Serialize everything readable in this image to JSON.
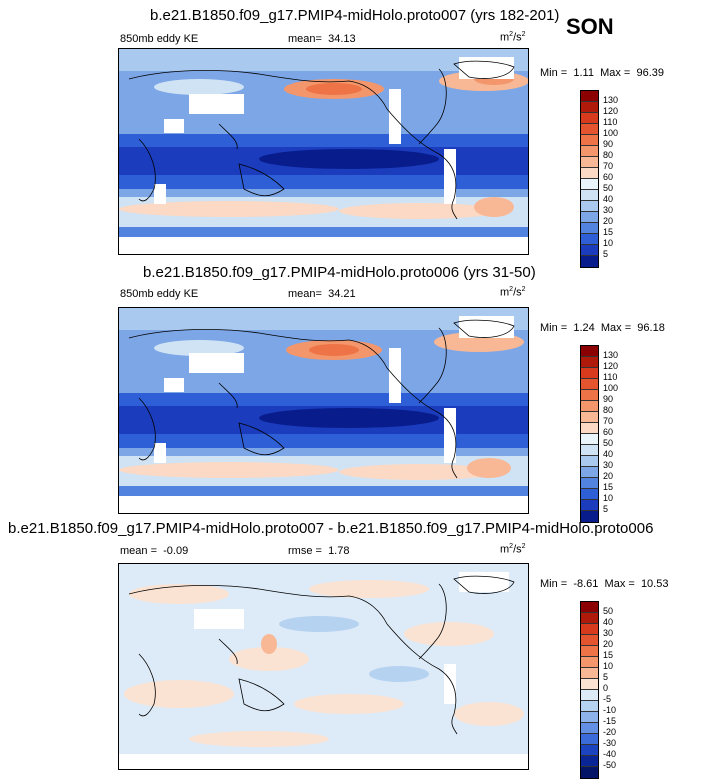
{
  "season": "SON",
  "panels": [
    {
      "title": "b.e21.B1850.f09_g17.PMIP4-midHolo.proto007 (yrs 182-201)",
      "variable": "850mb eddy KE",
      "stat_label": "mean=",
      "stat_value": "34.13",
      "unit": "m",
      "unit_exp1": "2",
      "unit_mid": "/s",
      "unit_exp2": "2",
      "minmax_min_label": "Min =",
      "minmax_min": "1.11",
      "minmax_max_label": "Max =",
      "minmax_max": "96.39",
      "colorbar_ticks": [
        "130",
        "120",
        "110",
        "100",
        "90",
        "80",
        "70",
        "60",
        "50",
        "40",
        "30",
        "20",
        "15",
        "10",
        "5"
      ],
      "colorbar_colors": [
        "#8b0000",
        "#b01a0a",
        "#d73a1c",
        "#e4542e",
        "#ee7447",
        "#f4966b",
        "#f8b896",
        "#fbd9c4",
        "#eaf4fb",
        "#cfe3f5",
        "#a9c9ee",
        "#7ca6e6",
        "#5283df",
        "#2e5fd6",
        "#1a3cbd",
        "#081c8c"
      ]
    },
    {
      "title": "b.e21.B1850.f09_g17.PMIP4-midHolo.proto006 (yrs 31-50)",
      "variable": "850mb eddy KE",
      "stat_label": "mean=",
      "stat_value": "34.21",
      "unit": "m",
      "unit_exp1": "2",
      "unit_mid": "/s",
      "unit_exp2": "2",
      "minmax_min_label": "Min =",
      "minmax_min": "1.24",
      "minmax_max_label": "Max =",
      "minmax_max": "96.18",
      "colorbar_ticks": [
        "130",
        "120",
        "110",
        "100",
        "90",
        "80",
        "70",
        "60",
        "50",
        "40",
        "30",
        "20",
        "15",
        "10",
        "5"
      ],
      "colorbar_colors": [
        "#8b0000",
        "#b01a0a",
        "#d73a1c",
        "#e4542e",
        "#ee7447",
        "#f4966b",
        "#f8b896",
        "#fbd9c4",
        "#eaf4fb",
        "#cfe3f5",
        "#a9c9ee",
        "#7ca6e6",
        "#5283df",
        "#2e5fd6",
        "#1a3cbd",
        "#081c8c"
      ]
    },
    {
      "title": "b.e21.B1850.f09_g17.PMIP4-midHolo.proto007 - b.e21.B1850.f09_g17.PMIP4-midHolo.proto006",
      "mean_label": "mean =",
      "mean_value": "-0.09",
      "stat_label": "rmse =",
      "stat_value": "1.78",
      "unit": "m",
      "unit_exp1": "2",
      "unit_mid": "/s",
      "unit_exp2": "2",
      "minmax_min_label": "Min =",
      "minmax_min": "-8.61",
      "minmax_max_label": "Max =",
      "minmax_max": "10.53",
      "colorbar_ticks": [
        "50",
        "40",
        "30",
        "20",
        "15",
        "10",
        "5",
        "0",
        "-5",
        "-10",
        "-15",
        "-20",
        "-30",
        "-40",
        "-50"
      ],
      "colorbar_colors": [
        "#8b0000",
        "#b01a0a",
        "#d73a1c",
        "#e4542e",
        "#ee7447",
        "#f4966b",
        "#f8b896",
        "#fbe3d4",
        "#ddebf8",
        "#b6d2f1",
        "#8db3ea",
        "#6390e2",
        "#3a6bd8",
        "#1c44c0",
        "#0a2596",
        "#041466"
      ]
    }
  ]
}
